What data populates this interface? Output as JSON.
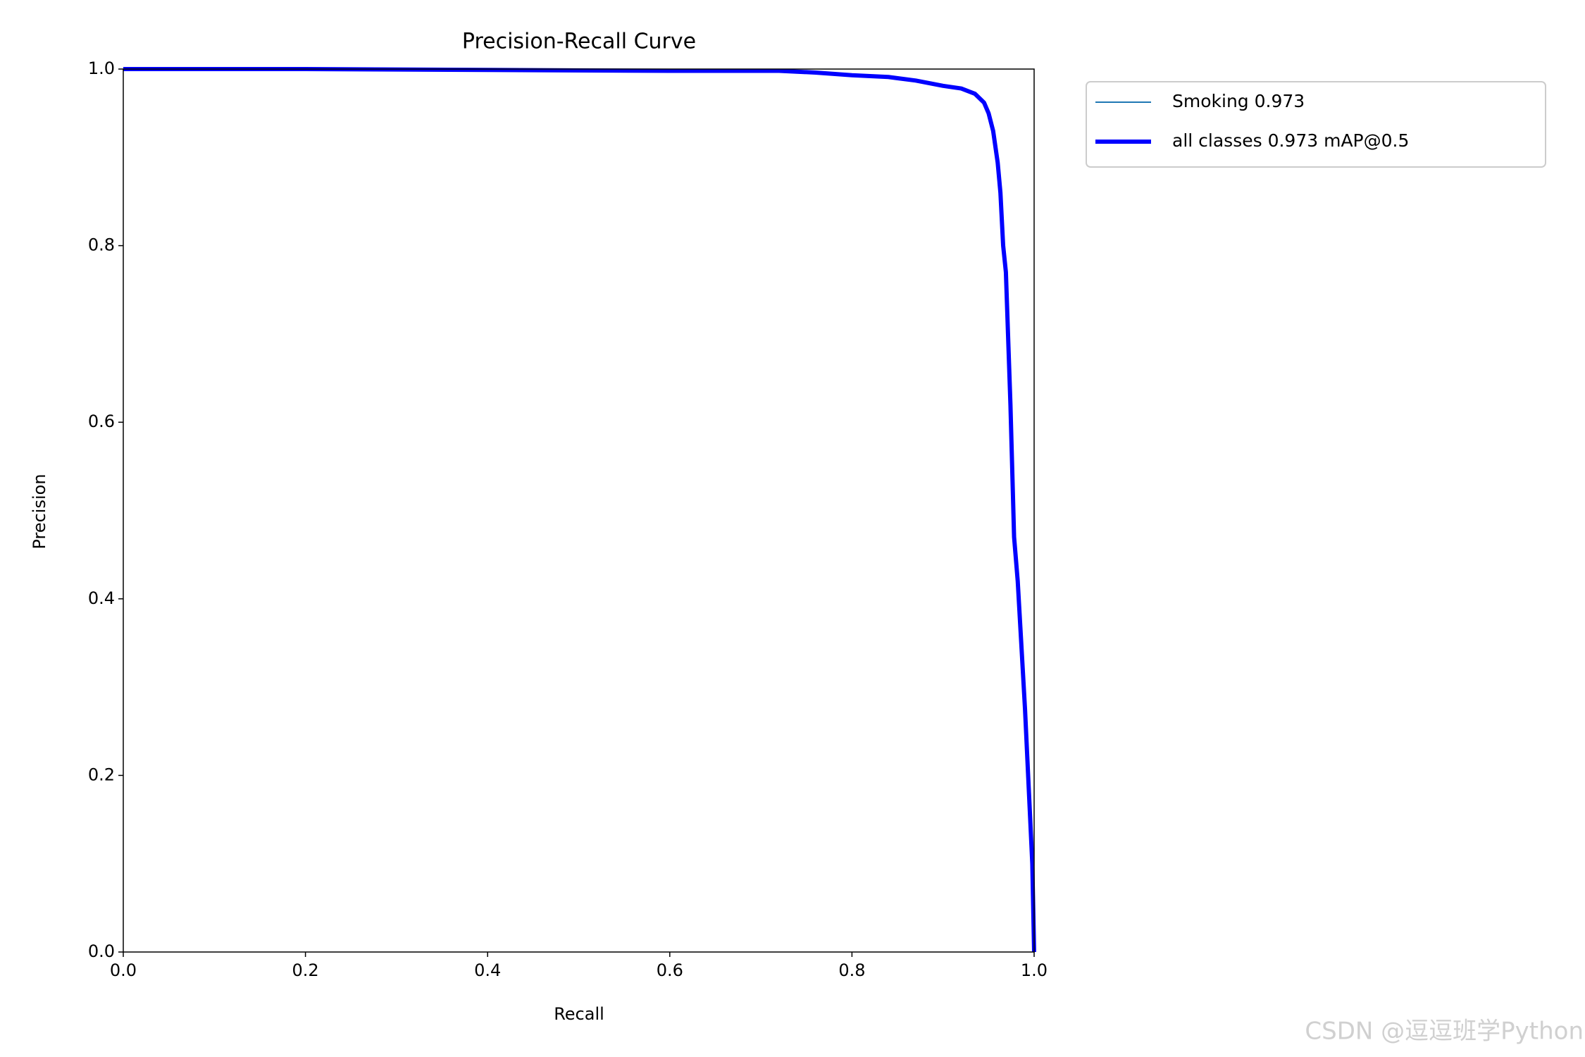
{
  "chart_data": {
    "type": "line",
    "title": "Precision-Recall Curve",
    "xlabel": "Recall",
    "ylabel": "Precision",
    "x": [
      0,
      0.2,
      0.4,
      0.6,
      0.72,
      0.76,
      0.8,
      0.84,
      0.87,
      0.9,
      0.92,
      0.935,
      0.945,
      0.95,
      0.955,
      0.96,
      0.963,
      0.966,
      0.969,
      0.972,
      0.974,
      0.978,
      0.982,
      0.99,
      0.998,
      1.0
    ],
    "series": [
      {
        "name": "Smoking 0.973",
        "color": "#1f77b4",
        "values": [
          1,
          1,
          0.999,
          0.998,
          0.998,
          0.996,
          0.993,
          0.991,
          0.987,
          0.981,
          0.978,
          0.972,
          0.962,
          0.95,
          0.93,
          0.894,
          0.86,
          0.8,
          0.77,
          0.68,
          0.62,
          0.47,
          0.42,
          0.275,
          0.1,
          0
        ]
      },
      {
        "name": "all classes 0.973 mAP@0.5",
        "color": "#0000ff",
        "values": [
          1,
          1,
          0.999,
          0.998,
          0.998,
          0.996,
          0.993,
          0.991,
          0.987,
          0.981,
          0.978,
          0.972,
          0.962,
          0.95,
          0.93,
          0.894,
          0.86,
          0.8,
          0.77,
          0.68,
          0.62,
          0.47,
          0.42,
          0.275,
          0.1,
          0
        ]
      }
    ],
    "xlim": [
      0,
      1
    ],
    "ylim": [
      0,
      1
    ],
    "xticks": [
      {
        "value": 0,
        "label": "0.0"
      },
      0.2,
      0.4,
      0.6,
      0.8,
      {
        "value": 1,
        "label": "1.0"
      }
    ],
    "yticks": [
      {
        "value": 0,
        "label": "0.0"
      },
      0.2,
      0.4,
      0.6,
      0.8,
      {
        "value": 1,
        "label": "1.0"
      }
    ],
    "grid": false
  },
  "watermark": "CSDN @逗逗班学Python"
}
